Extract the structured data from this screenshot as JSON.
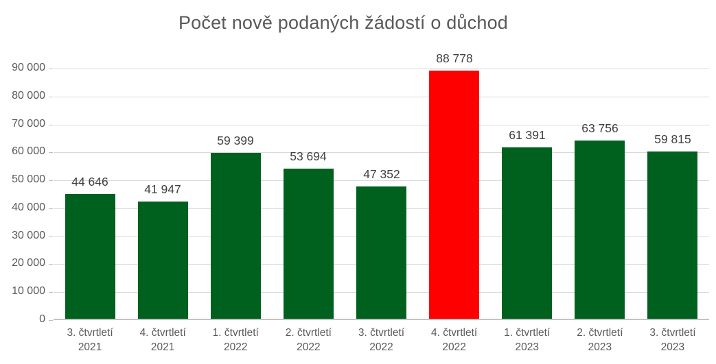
{
  "chart_data": {
    "type": "bar",
    "title": "Počet nově podaných žádostí o důchod",
    "categories": [
      "3. čtvrtletí\n2021",
      "4. čtvrtletí\n2021",
      "1. čtvrtletí\n2022",
      "2. čtvrtletí\n2022",
      "3. čtvrtletí\n2022",
      "4. čtvrtletí\n2022",
      "1. čtvrtletí\n2023",
      "2. čtvrtletí\n2023",
      "3. čtvrtletí\n2023"
    ],
    "values": [
      44646,
      41947,
      59399,
      53694,
      47352,
      88778,
      61391,
      63756,
      59815
    ],
    "value_labels": [
      "44 646",
      "41 947",
      "59 399",
      "53 694",
      "47 352",
      "88 778",
      "61 391",
      "63 756",
      "59 815"
    ],
    "highlight_index": 5,
    "xlabel": "",
    "ylabel": "",
    "ylim": [
      0,
      90000
    ],
    "grid": true,
    "legend_position": "none",
    "yticks": [
      {
        "value": 90000,
        "label": "90 000"
      },
      {
        "value": 80000,
        "label": "80 000"
      },
      {
        "value": 70000,
        "label": "70 000"
      },
      {
        "value": 60000,
        "label": "60 000"
      },
      {
        "value": 50000,
        "label": "50 000"
      },
      {
        "value": 40000,
        "label": "40 000"
      },
      {
        "value": 30000,
        "label": "30 000"
      },
      {
        "value": 20000,
        "label": "20 000"
      },
      {
        "value": 10000,
        "label": "10 000"
      },
      {
        "value": 0,
        "label": "0"
      }
    ],
    "colors": {
      "bar": "#00611e",
      "highlight": "#ff0000",
      "gridline": "#d9d9d9",
      "axis_line": "#c3c3c3",
      "title_text": "#595959",
      "tick_text": "#595959",
      "value_label_text": "#404040"
    }
  }
}
